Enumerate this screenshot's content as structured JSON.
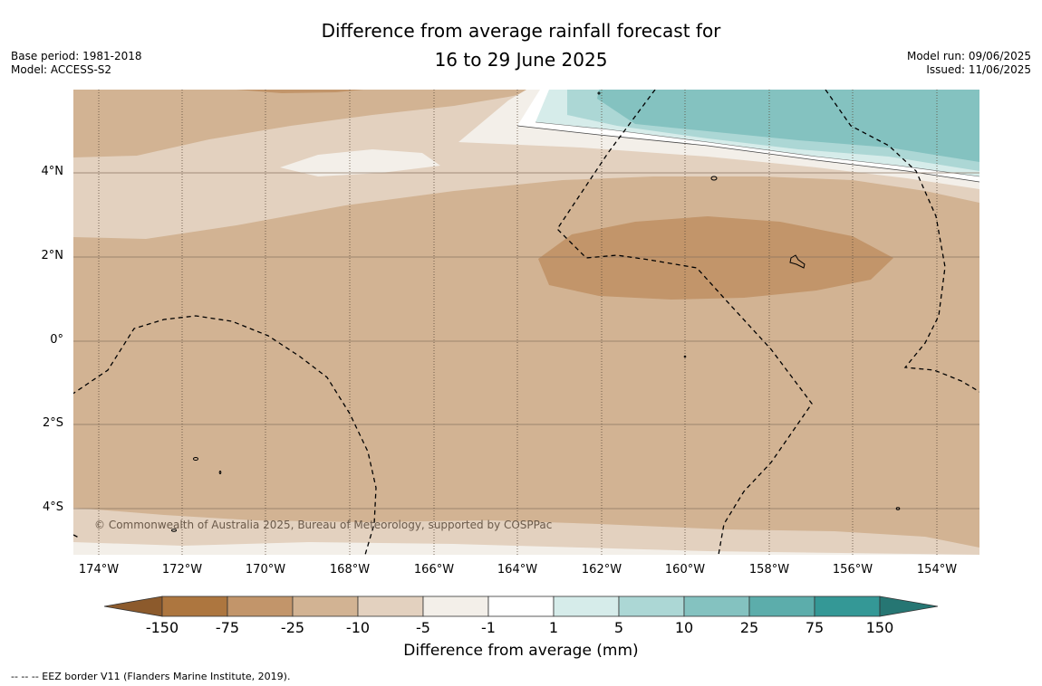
{
  "title": {
    "line1": "Difference from average rainfall forecast for",
    "line2": "16 to 29 June 2025"
  },
  "meta_left": {
    "base_period": "Base period: 1981-2018",
    "model": "Model: ACCESS-S2"
  },
  "meta_right": {
    "model_run": "Model run: 09/06/2025",
    "issued": "Issued: 11/06/2025"
  },
  "map": {
    "lat_labels": [
      "4°N",
      "2°N",
      "0°",
      "2°S",
      "4°S"
    ],
    "lon_labels": [
      "174°W",
      "172°W",
      "170°W",
      "168°W",
      "166°W",
      "164°W",
      "162°W",
      "160°W",
      "158°W",
      "156°W",
      "154°W"
    ],
    "copyright": "© Commonwealth of Australia 2025, Bureau of Meteorology, supported by COSPPac"
  },
  "colorbar": {
    "ticks": [
      "-150",
      "-75",
      "-25",
      "-10",
      "-5",
      "-1",
      "1",
      "5",
      "10",
      "25",
      "75",
      "150"
    ],
    "colors": [
      "#8c5a2c",
      "#ad763f",
      "#c2956a",
      "#d2b393",
      "#e3d1bf",
      "#f3efe9",
      "#ffffff",
      "#d6ecea",
      "#acd7d5",
      "#84c2c0",
      "#5cadab",
      "#349896",
      "#267673"
    ],
    "title": "Difference from average (mm)"
  },
  "footnote": "--  --  -- EEZ border V11 (Flanders Marine Institute, 2019)."
}
